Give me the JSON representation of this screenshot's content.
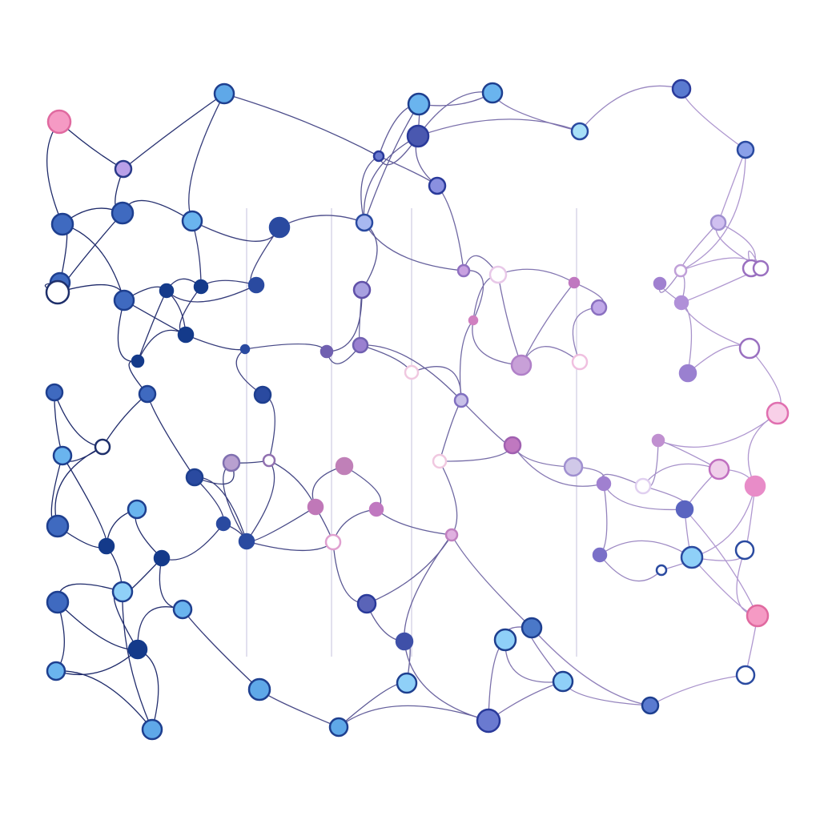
{
  "diagram": {
    "type": "network-graph",
    "labels": [],
    "palette": {
      "background": "#ffffff",
      "edge_left": "#1e2a6a",
      "edge_right": "#b098d0",
      "guide_line": "#c8c4e0",
      "node_navy": "#143a8a",
      "node_blue": "#3f6ac0",
      "node_sky": "#6ab4ee",
      "node_lavender": "#c0a8e8",
      "node_magenta": "#c078c0",
      "node_pink": "#f59ac4"
    }
  }
}
